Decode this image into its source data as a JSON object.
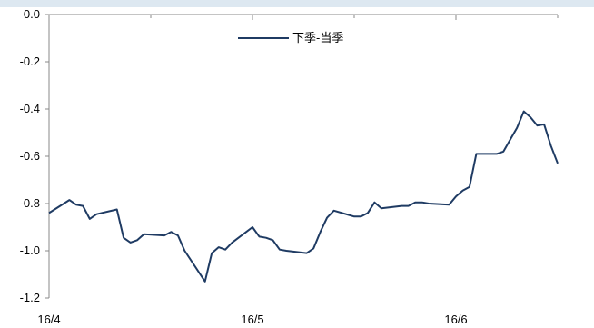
{
  "chart_data": {
    "type": "line",
    "title": "",
    "xlabel": "",
    "ylabel": "",
    "ylim": [
      -1.2,
      0.0
    ],
    "y_ticks": [
      0.0,
      -0.2,
      -0.4,
      -0.6,
      -0.8,
      -1.0,
      -1.2
    ],
    "y_tick_labels": [
      "0.0",
      "-0.2",
      "-0.4",
      "-0.6",
      "-0.8",
      "-1.0",
      "-1.2"
    ],
    "x_tick_labels": [
      "16/4",
      "16/5",
      "16/6"
    ],
    "x_label_positions": [
      0,
      30,
      60
    ],
    "x_range": [
      0,
      75
    ],
    "grid": false,
    "legend_position": "top-center",
    "series": [
      {
        "name": "下季-当季",
        "color": "#1f3b63",
        "x": [
          0,
          3,
          4,
          5,
          6,
          7,
          10,
          11,
          12,
          13,
          14,
          17,
          18,
          19,
          20,
          23,
          24,
          25,
          26,
          27,
          30,
          31,
          32,
          33,
          34,
          35,
          38,
          39,
          40,
          41,
          42,
          45,
          46,
          47,
          48,
          49,
          52,
          53,
          54,
          55,
          56,
          59,
          60,
          61,
          62,
          63,
          66,
          67,
          68,
          69,
          70,
          71,
          72,
          73,
          74,
          75
        ],
        "values": [
          -0.84,
          -0.785,
          -0.805,
          -0.81,
          -0.865,
          -0.845,
          -0.825,
          -0.945,
          -0.965,
          -0.955,
          -0.93,
          -0.935,
          -0.92,
          -0.935,
          -1.0,
          -1.13,
          -1.01,
          -0.985,
          -0.995,
          -0.965,
          -0.9,
          -0.94,
          -0.945,
          -0.955,
          -0.995,
          -1.0,
          -1.01,
          -0.99,
          -0.92,
          -0.86,
          -0.83,
          -0.855,
          -0.855,
          -0.84,
          -0.795,
          -0.82,
          -0.81,
          -0.81,
          -0.795,
          -0.795,
          -0.8,
          -0.805,
          -0.77,
          -0.745,
          -0.73,
          -0.59,
          -0.59,
          -0.58,
          -0.53,
          -0.48,
          -0.41,
          -0.435,
          -0.47,
          -0.465,
          -0.555,
          -0.63
        ]
      }
    ]
  }
}
